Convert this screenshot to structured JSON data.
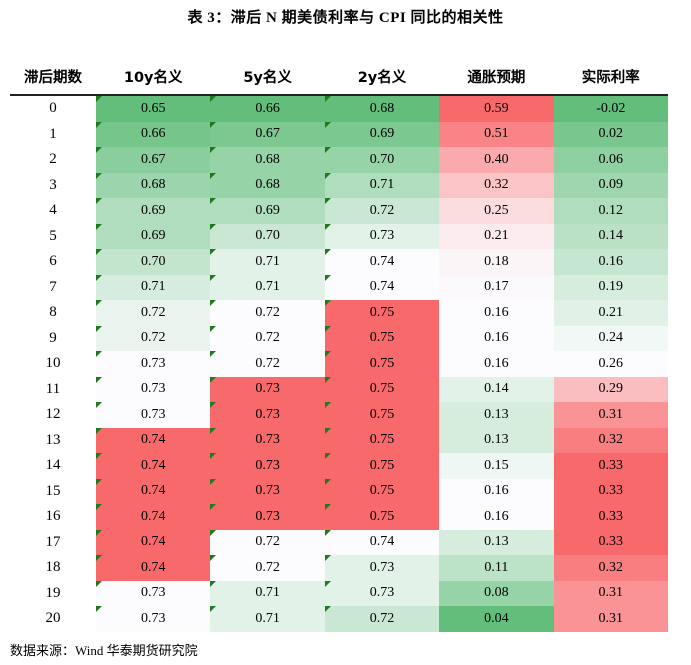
{
  "title": "表 3：滞后 N 期美债利率与 CPI 同比的相关性",
  "headers": [
    "滞后期数",
    "10y名义",
    "5y名义",
    "2y名义",
    "通胀预期",
    "实际利率"
  ],
  "rows": [
    [
      "0",
      "0.65",
      "0.66",
      "0.68",
      "0.59",
      "-0.02"
    ],
    [
      "1",
      "0.66",
      "0.67",
      "0.69",
      "0.51",
      "0.02"
    ],
    [
      "2",
      "0.67",
      "0.68",
      "0.70",
      "0.40",
      "0.06"
    ],
    [
      "3",
      "0.68",
      "0.68",
      "0.71",
      "0.32",
      "0.09"
    ],
    [
      "4",
      "0.69",
      "0.69",
      "0.72",
      "0.25",
      "0.12"
    ],
    [
      "5",
      "0.69",
      "0.70",
      "0.73",
      "0.21",
      "0.14"
    ],
    [
      "6",
      "0.70",
      "0.71",
      "0.74",
      "0.18",
      "0.16"
    ],
    [
      "7",
      "0.71",
      "0.71",
      "0.74",
      "0.17",
      "0.19"
    ],
    [
      "8",
      "0.72",
      "0.72",
      "0.75",
      "0.16",
      "0.21"
    ],
    [
      "9",
      "0.72",
      "0.72",
      "0.75",
      "0.16",
      "0.24"
    ],
    [
      "10",
      "0.73",
      "0.72",
      "0.75",
      "0.16",
      "0.26"
    ],
    [
      "11",
      "0.73",
      "0.73",
      "0.75",
      "0.14",
      "0.29"
    ],
    [
      "12",
      "0.73",
      "0.73",
      "0.75",
      "0.13",
      "0.31"
    ],
    [
      "13",
      "0.74",
      "0.73",
      "0.75",
      "0.13",
      "0.32"
    ],
    [
      "14",
      "0.74",
      "0.73",
      "0.75",
      "0.15",
      "0.33"
    ],
    [
      "15",
      "0.74",
      "0.73",
      "0.75",
      "0.16",
      "0.33"
    ],
    [
      "16",
      "0.74",
      "0.73",
      "0.75",
      "0.16",
      "0.33"
    ],
    [
      "17",
      "0.74",
      "0.72",
      "0.74",
      "0.13",
      "0.33"
    ],
    [
      "18",
      "0.74",
      "0.72",
      "0.73",
      "0.11",
      "0.32"
    ],
    [
      "19",
      "0.73",
      "0.71",
      "0.73",
      "0.08",
      "0.31"
    ],
    [
      "20",
      "0.73",
      "0.71",
      "0.72",
      "0.04",
      "0.31"
    ]
  ],
  "source": {
    "label": "数据来源：",
    "value": "Wind 华泰期货研究院"
  },
  "colors": {
    "low": "#63be7b",
    "mid": "#fcfcff",
    "high": "#f8696b",
    "corner_mark": "#1f7a1f"
  }
}
